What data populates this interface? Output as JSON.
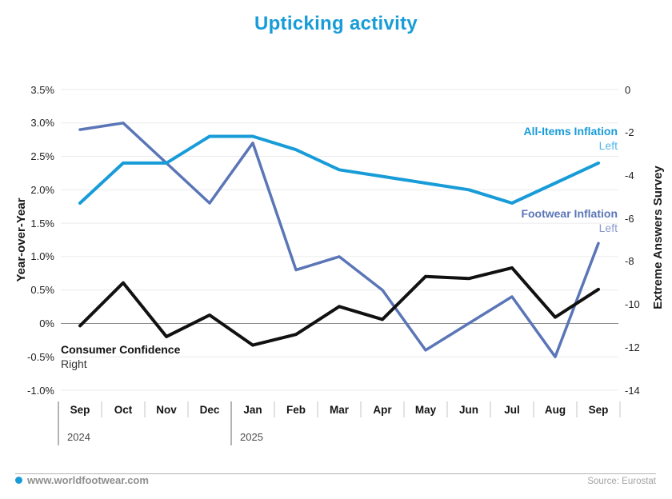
{
  "title": "Upticking activity",
  "palette": {
    "accent_blue": "#189cd8",
    "all_items_line": "#189cd8",
    "all_items_light": "#53b7e6",
    "footwear_line": "#5b76b7",
    "footwear_light": "#8b9bce",
    "confidence_line": "#111111",
    "confidence_light": "#333333",
    "gridline": "#ebebeb",
    "zero_line": "#8c8c8c",
    "tick_mark": "#c4c4c4",
    "year_divider": "#9a9a9a"
  },
  "footer": {
    "site": "www.worldfootwear.com",
    "source": "Source: Eurostat",
    "bullet_icon": "dot-icon"
  },
  "chart_data": {
    "type": "line",
    "title": "Upticking activity",
    "categories": [
      "Sep",
      "Oct",
      "Nov",
      "Dec",
      "Jan",
      "Feb",
      "Mar",
      "Apr",
      "May",
      "Jun",
      "Jul",
      "Aug",
      "Sep"
    ],
    "category_years": [
      {
        "label": "2024",
        "from_index": 0
      },
      {
        "label": "2025",
        "from_index": 4
      }
    ],
    "left_axis": {
      "label": "Year-over-Year",
      "ticks": [
        "3.5%",
        "3.0%",
        "2.5%",
        "2.0%",
        "1.5%",
        "1.0%",
        "0.5%",
        "0%",
        "-0.5%",
        "-1.0%"
      ],
      "tick_values": [
        3.5,
        3.0,
        2.5,
        2.0,
        1.5,
        1.0,
        0.5,
        0.0,
        -0.5,
        -1.0
      ],
      "min": -1.0,
      "max": 3.5,
      "zero_line": true
    },
    "right_axis": {
      "label": "Extreme Answers Survey",
      "ticks": [
        "0",
        "-2",
        "-4",
        "-6",
        "-8",
        "-10",
        "-12",
        "-14"
      ],
      "tick_values": [
        0,
        -2,
        -4,
        -6,
        -8,
        -10,
        -12,
        -14
      ],
      "min": -14,
      "max": 0
    },
    "grid": true,
    "legend_position": "inline-annotations",
    "series": [
      {
        "name": "All-Items Inflation",
        "annotation": "Left",
        "axis": "left",
        "color": "#189cd8",
        "values": [
          1.8,
          2.4,
          2.4,
          2.8,
          2.8,
          2.6,
          2.3,
          2.2,
          2.1,
          2.0,
          1.8,
          2.1,
          2.4
        ]
      },
      {
        "name": "Footwear Inflation",
        "annotation": "Left",
        "axis": "left",
        "color": "#5b76b7",
        "values": [
          2.9,
          3.0,
          2.4,
          1.8,
          2.7,
          0.8,
          1.0,
          0.5,
          -0.4,
          0.0,
          0.4,
          -0.5,
          1.2
        ]
      },
      {
        "name": "Consumer Confidence",
        "annotation": "Right",
        "axis": "right",
        "color": "#111111",
        "values": [
          -11.0,
          -9.0,
          -11.5,
          -10.5,
          -11.9,
          -11.4,
          -10.1,
          -10.7,
          -8.7,
          -8.8,
          -8.3,
          -10.6,
          -9.3
        ]
      }
    ]
  }
}
